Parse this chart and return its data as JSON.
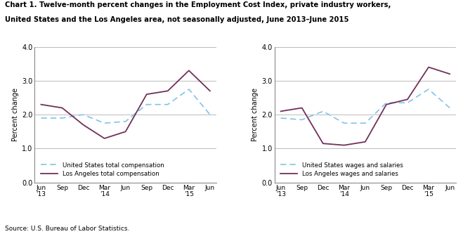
{
  "title_line1": "Chart 1. Twelve-month percent changes in the Employment Cost Index, private industry workers,",
  "title_line2": "United States and the Los Angeles area, not seasonally adjusted, June 2013–June 2015",
  "ylabel": "Percent change",
  "source": "Source: U.S. Bureau of Labor Statistics.",
  "left_us": [
    1.9,
    1.9,
    2.0,
    1.75,
    1.8,
    2.3,
    2.3,
    2.75,
    2.0
  ],
  "left_la": [
    2.3,
    2.2,
    1.7,
    1.3,
    1.5,
    2.6,
    2.7,
    3.3,
    2.7
  ],
  "right_us": [
    1.9,
    1.85,
    2.1,
    1.75,
    1.75,
    2.35,
    2.35,
    2.75,
    2.2
  ],
  "right_la": [
    2.1,
    2.2,
    1.15,
    1.1,
    1.2,
    2.3,
    2.45,
    3.4,
    3.2
  ],
  "xtick_labels": [
    "Jun\n'13",
    "Sep",
    "Dec",
    "Mar\n'14",
    "Jun",
    "Sep",
    "Dec",
    "Mar\n'15",
    "Jun"
  ],
  "us_color": "#80c4e8",
  "la_color": "#722F5B",
  "ylim": [
    0.0,
    4.0
  ],
  "yticks": [
    0.0,
    1.0,
    2.0,
    3.0,
    4.0
  ],
  "grid_color": "#b0b0b0",
  "background_color": "#ffffff",
  "left_legend": [
    "United States total compensation",
    "Los Angeles total compensation"
  ],
  "right_legend": [
    "United States wages and salaries",
    "Los Angeles wages and salaries"
  ]
}
